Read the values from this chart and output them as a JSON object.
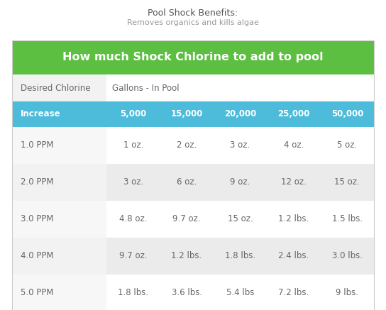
{
  "title": "Pool Shock Benefits:",
  "subtitle": "Removes organics and kills algae",
  "header_title": "How much Shock Chlorine to add to pool",
  "subheader_col1": "Desired Chlorine",
  "subheader_col2": "Gallons - In Pool",
  "col_header_bg": "#4DBBDA",
  "col_headers": [
    "Increase",
    "5,000",
    "15,000",
    "20,000",
    "25,000",
    "50,000"
  ],
  "green_bg": "#5CBF42",
  "row_bg_even": "#ebebeb",
  "row_bg_odd": "#ffffff",
  "rows": [
    [
      "1.0 PPM",
      "1 oz.",
      "2 oz.",
      "3 oz.",
      "4 oz.",
      "5 oz."
    ],
    [
      "2.0 PPM",
      "3 oz.",
      "6 oz.",
      "9 oz.",
      "12 oz.",
      "15 oz."
    ],
    [
      "3.0 PPM",
      "4.8 oz.",
      "9.7 oz.",
      "15 oz.",
      "1.2 lbs.",
      "1.5 lbs."
    ],
    [
      "4.0 PPM",
      "9.7 oz.",
      "1.2 lbs.",
      "1.8 lbs.",
      "2.4 lbs.",
      "3.0 lbs."
    ],
    [
      "5.0 PPM",
      "1.8 lbs.",
      "3.6 lbs.",
      "5.4 lbs",
      "7.2 lbs.",
      "9 lbs."
    ]
  ],
  "title_fontsize": 9,
  "subtitle_fontsize": 8,
  "header_fontsize": 11.5,
  "subheader_fontsize": 8.5,
  "col_header_fontsize": 8.5,
  "cell_fontsize": 8.5,
  "bg_color": "#ffffff",
  "title_color": "#555555",
  "subtitle_color": "#999999",
  "text_color": "#666666"
}
